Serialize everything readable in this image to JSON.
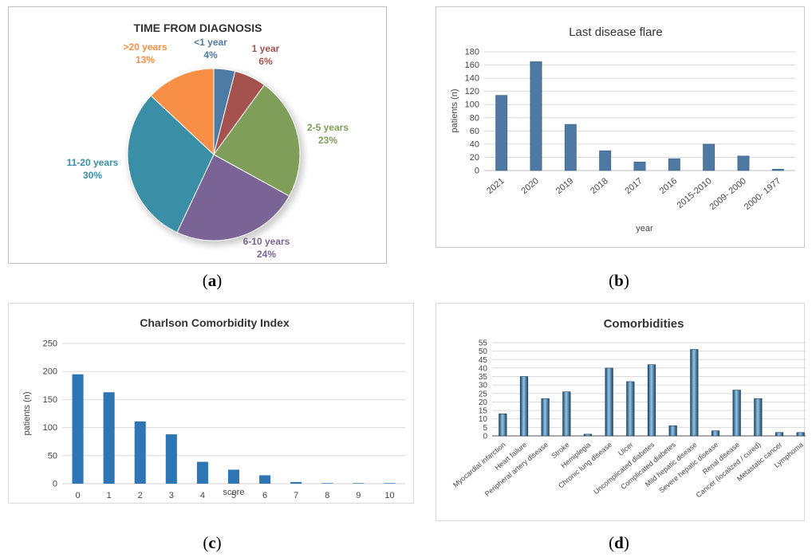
{
  "panels": {
    "a": {
      "caption_letter": "a",
      "chart_data": {
        "type": "pie",
        "title": "TIME FROM DIAGNOSIS",
        "slices": [
          {
            "label": "<1 year",
            "value": 4,
            "value_label": "4%",
            "color": "#4E7AA6"
          },
          {
            "label": "1 year",
            "value": 6,
            "value_label": "6%",
            "color": "#A5524E"
          },
          {
            "label": "2-5 years",
            "value": 23,
            "value_label": "23%",
            "color": "#7E9E5A"
          },
          {
            "label": "6-10 years",
            "value": 24,
            "value_label": "24%",
            "color": "#7A6496"
          },
          {
            "label": "11-20 years",
            "value": 30,
            "value_label": "30%",
            "color": "#3A8FA6"
          },
          {
            "label": ">20 years",
            "value": 13,
            "value_label": "13%",
            "color": "#F79046"
          }
        ]
      }
    },
    "b": {
      "caption_letter": "b",
      "chart_data": {
        "type": "bar",
        "title": "Last disease flare",
        "xlabel": "year",
        "ylabel": "patients (n)",
        "ylim": [
          0,
          180
        ],
        "yticks": [
          "0",
          "20",
          "40",
          "60",
          "80",
          "100",
          "120",
          "140",
          "160",
          "180"
        ],
        "categories": [
          "2021",
          "2020",
          "2019",
          "2018",
          "2017",
          "2016",
          "2015-2010",
          "2009- 2000",
          "2000- 1977"
        ],
        "values": [
          114,
          165,
          70,
          30,
          13,
          18,
          40,
          22,
          2
        ],
        "color": "#4E79A2",
        "grid": true
      }
    },
    "c": {
      "caption_letter": "c",
      "chart_data": {
        "type": "bar",
        "title": "Charlson Comorbidity Index",
        "xlabel": "score",
        "ylabel": "patients (n)",
        "ylim": [
          0,
          250
        ],
        "yticks": [
          "0",
          "50",
          "100",
          "150",
          "200",
          "250"
        ],
        "categories": [
          "0",
          "1",
          "2",
          "3",
          "4",
          "5",
          "6",
          "7",
          "8",
          "9",
          "10"
        ],
        "values": [
          195,
          163,
          111,
          88,
          39,
          25,
          15,
          3,
          1,
          1,
          1
        ],
        "color": "#2E75B6",
        "grid": true
      }
    },
    "d": {
      "caption_letter": "d",
      "chart_data": {
        "type": "bar",
        "title": "Comorbidities",
        "ylim": [
          0,
          55
        ],
        "yticks": [
          "0",
          "5",
          "10",
          "15",
          "20",
          "25",
          "30",
          "35",
          "40",
          "45",
          "50",
          "55"
        ],
        "categories": [
          "Myocardial infarction",
          "Heart failure",
          "Peripheral artery disease",
          "Stroke",
          "Hemiplegia",
          "Chronic lung disease",
          "Ulcer",
          "Uncomplicated diabetes",
          "Complicated diabetes",
          "Mild hepatic disease",
          "Severe hepatic disease",
          "Renal disease",
          "Cancer (localized / cured)",
          "Metastatic cancer",
          "Lymphoma"
        ],
        "values": [
          13,
          35,
          22,
          26,
          1,
          40,
          32,
          42,
          6,
          51,
          3,
          27,
          22,
          2,
          2
        ],
        "color": "#2F5F8A",
        "grid": true
      }
    }
  }
}
